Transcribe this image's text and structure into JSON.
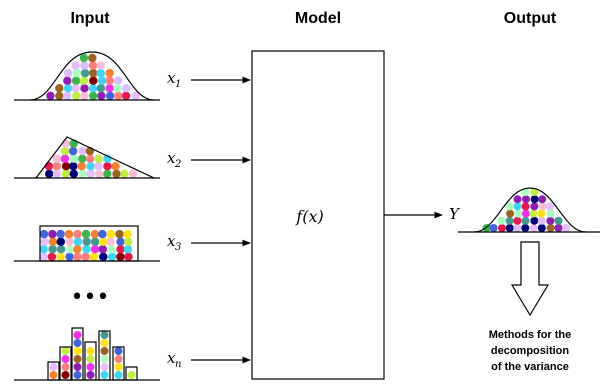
{
  "headers": {
    "input": "Input",
    "model": "Model",
    "output": "Output"
  },
  "inputs": [
    {
      "base": "x",
      "sub": "1",
      "shape": "bell"
    },
    {
      "base": "x",
      "sub": "2",
      "shape": "triangle"
    },
    {
      "base": "x",
      "sub": "3",
      "shape": "uniform"
    },
    {
      "base": "x",
      "sub": "n",
      "shape": "histogram"
    }
  ],
  "ellipsis": "•••",
  "model_label": "f(x)",
  "output_label": "Y",
  "methods_note": [
    "Methods for the",
    "decomposition",
    "of the variance"
  ],
  "dot_colors": [
    "#e6194b",
    "#3cb44b",
    "#4363d8",
    "#f58231",
    "#911eb4",
    "#42d4f4",
    "#f032e6",
    "#bfef45",
    "#ff7f7f",
    "#9a6324",
    "#ffe119",
    "#800000",
    "#000075",
    "#469990",
    "#fabed4",
    "#dcbeff",
    "#aaffc3",
    "#e6beff"
  ]
}
